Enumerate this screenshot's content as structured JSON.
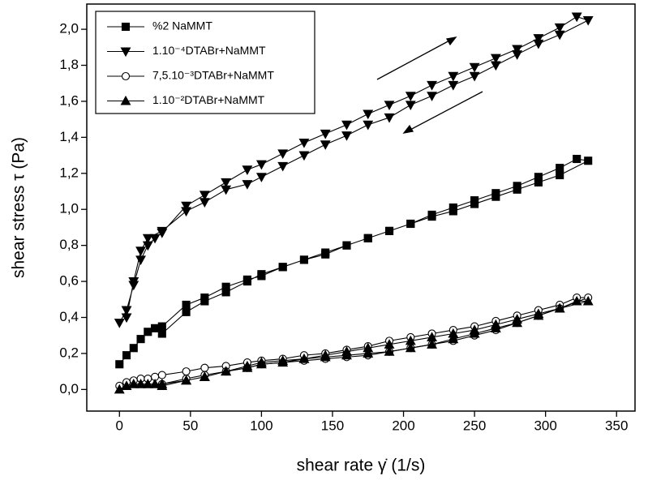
{
  "chart_data": {
    "type": "line",
    "xlabel": "shear rate γ̇ (1/s)",
    "ylabel": "shear stress τ (Pa)",
    "xlim": [
      -23,
      363
    ],
    "xticks": [
      0,
      50,
      100,
      150,
      200,
      250,
      300,
      350
    ],
    "ylim": [
      -0.12,
      2.14
    ],
    "yticks": [
      {
        "value": 0,
        "label": "0,0"
      },
      {
        "value": 0.2,
        "label": "0,2"
      },
      {
        "value": 0.4,
        "label": "0,4"
      },
      {
        "value": 0.6,
        "label": "0,6"
      },
      {
        "value": 0.8,
        "label": "0,8"
      },
      {
        "value": 1.0,
        "label": "1,0"
      },
      {
        "value": 1.2,
        "label": "1,2"
      },
      {
        "value": 1.4,
        "label": "1,4"
      },
      {
        "value": 1.6,
        "label": "1,6"
      },
      {
        "value": 1.8,
        "label": "1,8"
      },
      {
        "value": 2.0,
        "label": "2,0"
      }
    ],
    "grid": false,
    "legend": "upper left",
    "series": [
      {
        "name": "%2 NaMMT",
        "color": "#000000",
        "marker": "square",
        "x": [
          0,
          5,
          10,
          15,
          20,
          25,
          30,
          47,
          60,
          75,
          90,
          100,
          115,
          130,
          145,
          160,
          175,
          190,
          205,
          220,
          235,
          250,
          265,
          280,
          295,
          310,
          322,
          330,
          310,
          295,
          280,
          265,
          250,
          235,
          220,
          205,
          190,
          175,
          160,
          145,
          130,
          115,
          100,
          90,
          75,
          60,
          47,
          30
        ],
        "values": [
          0.14,
          0.19,
          0.23,
          0.28,
          0.32,
          0.34,
          0.35,
          0.47,
          0.51,
          0.57,
          0.61,
          0.63,
          0.68,
          0.72,
          0.75,
          0.8,
          0.84,
          0.88,
          0.92,
          0.97,
          1.01,
          1.05,
          1.09,
          1.13,
          1.18,
          1.23,
          1.28,
          1.27,
          1.19,
          1.15,
          1.11,
          1.07,
          1.03,
          0.99,
          0.96,
          0.92,
          0.88,
          0.84,
          0.8,
          0.76,
          0.72,
          0.68,
          0.64,
          0.6,
          0.54,
          0.49,
          0.43,
          0.31
        ]
      },
      {
        "name": "1.10⁻⁴DTABr+NaMMT",
        "color": "#000000",
        "marker": "triangle-down",
        "x": [
          0,
          5,
          10,
          15,
          20,
          25,
          30,
          47,
          60,
          75,
          90,
          100,
          115,
          130,
          145,
          160,
          175,
          190,
          205,
          220,
          235,
          250,
          265,
          280,
          295,
          310,
          322,
          330,
          310,
          295,
          280,
          265,
          250,
          235,
          220,
          205,
          190,
          175,
          160,
          145,
          130,
          115,
          100,
          90,
          75,
          60,
          47,
          30,
          20,
          15,
          10,
          5
        ],
        "values": [
          0.37,
          0.44,
          0.58,
          0.72,
          0.8,
          0.84,
          0.87,
          1.02,
          1.08,
          1.15,
          1.22,
          1.25,
          1.31,
          1.37,
          1.42,
          1.47,
          1.53,
          1.58,
          1.63,
          1.69,
          1.74,
          1.79,
          1.84,
          1.89,
          1.95,
          2.01,
          2.07,
          2.05,
          1.97,
          1.92,
          1.86,
          1.8,
          1.74,
          1.69,
          1.63,
          1.58,
          1.51,
          1.47,
          1.41,
          1.36,
          1.3,
          1.24,
          1.18,
          1.14,
          1.11,
          1.04,
          0.99,
          0.88,
          0.84,
          0.77,
          0.6,
          0.4
        ]
      },
      {
        "name": "7,5.10⁻³DTABr+NaMMT",
        "color": "#000000",
        "marker": "circle-open",
        "x": [
          0,
          5,
          10,
          15,
          20,
          25,
          30,
          47,
          60,
          75,
          90,
          100,
          115,
          130,
          145,
          160,
          175,
          190,
          205,
          220,
          235,
          250,
          265,
          280,
          295,
          310,
          322,
          330,
          310,
          295,
          280,
          265,
          250,
          235,
          220,
          205,
          190,
          175,
          160,
          145,
          130,
          115,
          100,
          90,
          75,
          60,
          47,
          30
        ],
        "values": [
          0.02,
          0.04,
          0.05,
          0.06,
          0.06,
          0.07,
          0.08,
          0.1,
          0.12,
          0.13,
          0.15,
          0.16,
          0.17,
          0.19,
          0.2,
          0.22,
          0.24,
          0.27,
          0.29,
          0.31,
          0.33,
          0.35,
          0.38,
          0.41,
          0.44,
          0.47,
          0.51,
          0.51,
          0.45,
          0.41,
          0.37,
          0.33,
          0.3,
          0.27,
          0.25,
          0.23,
          0.21,
          0.19,
          0.18,
          0.17,
          0.16,
          0.15,
          0.14,
          0.12,
          0.1,
          0.08,
          0.06,
          0.03
        ]
      },
      {
        "name": "1.10⁻²DTABr+NaMMT",
        "color": "#000000",
        "marker": "triangle-up",
        "x": [
          0,
          5,
          10,
          15,
          20,
          25,
          30,
          47,
          60,
          75,
          90,
          100,
          115,
          130,
          145,
          160,
          175,
          190,
          205,
          220,
          235,
          250,
          265,
          280,
          295,
          310,
          322,
          330,
          310,
          295,
          280,
          265,
          250,
          235,
          220,
          205,
          190,
          175,
          160,
          145,
          130,
          115,
          100,
          90,
          75,
          60,
          47,
          30
        ],
        "values": [
          0.0,
          0.02,
          0.03,
          0.03,
          0.03,
          0.03,
          0.03,
          0.05,
          0.07,
          0.1,
          0.13,
          0.15,
          0.16,
          0.17,
          0.19,
          0.21,
          0.23,
          0.25,
          0.27,
          0.29,
          0.31,
          0.33,
          0.36,
          0.39,
          0.42,
          0.45,
          0.49,
          0.49,
          0.45,
          0.41,
          0.37,
          0.34,
          0.31,
          0.28,
          0.25,
          0.23,
          0.21,
          0.2,
          0.19,
          0.18,
          0.17,
          0.15,
          0.14,
          0.12,
          0.1,
          0.07,
          0.05,
          0.02
        ]
      }
    ]
  }
}
